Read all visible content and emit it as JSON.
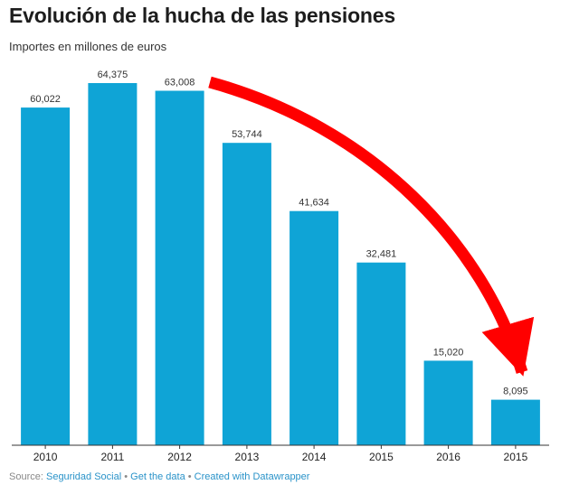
{
  "chart_data": {
    "type": "bar",
    "title": "Evolución de la hucha de las pensiones",
    "subtitle": "Importes en millones de euros",
    "categories": [
      "2010",
      "2011",
      "2012",
      "2013",
      "2014",
      "2015",
      "2016",
      "2015"
    ],
    "values": [
      60022,
      64375,
      63008,
      53744,
      41634,
      32481,
      15020,
      8095
    ],
    "value_labels": [
      "60,022",
      "64,375",
      "63,008",
      "53,744",
      "41,634",
      "32,481",
      "15,020",
      "8,095"
    ],
    "ylim": [
      0,
      64375
    ],
    "xlabel": "",
    "ylabel": "",
    "grid": false,
    "bar_color": "#0fa4d6",
    "annotation": {
      "type": "arrow",
      "color": "#ff0000",
      "from_category": "2012",
      "to_category": "2015"
    }
  },
  "footer": {
    "source_label": "Source:",
    "source_link": "Seguridad Social",
    "separator": "•",
    "get_data": "Get the data",
    "created_with": "Created with Datawrapper"
  }
}
